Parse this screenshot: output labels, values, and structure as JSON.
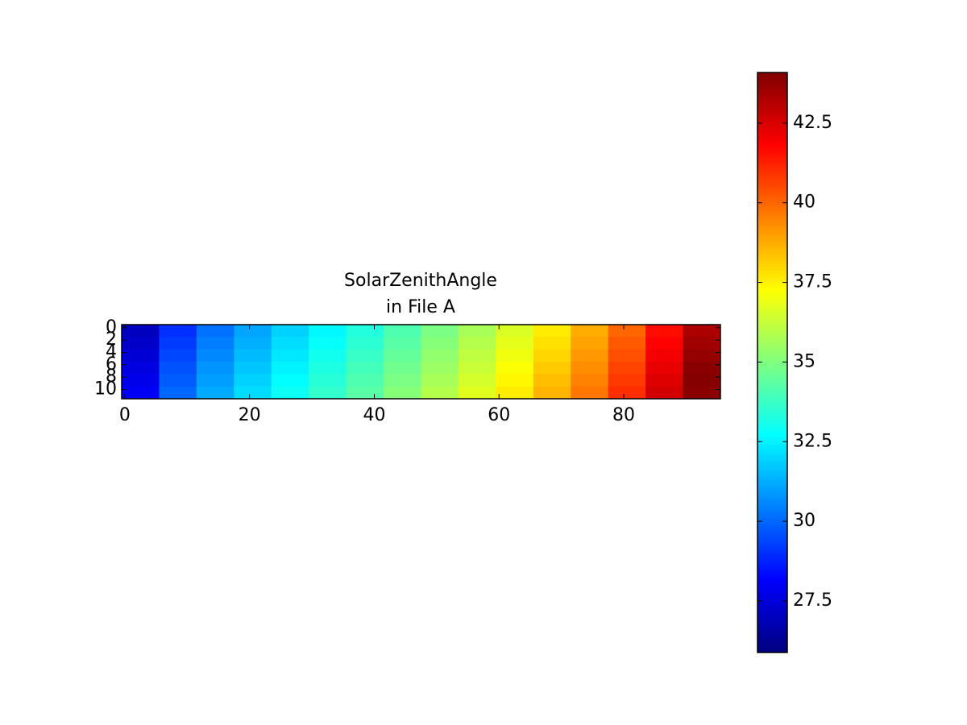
{
  "chart_data": {
    "type": "heatmap",
    "title": [
      "SolarZenithAngle",
      "in File A"
    ],
    "cmap": "jet",
    "x_edges": [
      -0.5,
      5.5,
      11.5,
      17.5,
      23.5,
      29.5,
      35.5,
      41.5,
      47.5,
      53.5,
      59.5,
      65.5,
      71.5,
      77.5,
      83.5,
      89.5,
      95.5
    ],
    "y_edges": [
      -0.5,
      1.5,
      3.5,
      5.5,
      7.5,
      9.5,
      11.5
    ],
    "values": [
      [
        27.0,
        29.0,
        30.2,
        31.1,
        31.9,
        32.6,
        33.3,
        34.1,
        34.9,
        35.7,
        36.6,
        37.6,
        38.7,
        40.0,
        41.6,
        43.3
      ],
      [
        27.2,
        29.2,
        30.4,
        31.3,
        32.1,
        32.8,
        33.5,
        34.3,
        35.1,
        35.9,
        36.8,
        37.8,
        38.9,
        40.2,
        41.8,
        43.5
      ],
      [
        27.4,
        29.4,
        30.6,
        31.5,
        32.3,
        33.0,
        33.7,
        34.5,
        35.3,
        36.1,
        37.0,
        38.0,
        39.1,
        40.4,
        42.0,
        43.7
      ],
      [
        27.6,
        29.6,
        30.8,
        31.7,
        32.5,
        33.2,
        33.9,
        34.7,
        35.5,
        36.3,
        37.2,
        38.2,
        39.3,
        40.6,
        42.2,
        43.9
      ],
      [
        27.8,
        29.8,
        31.0,
        31.9,
        32.7,
        33.4,
        34.1,
        34.9,
        35.7,
        36.5,
        37.4,
        38.4,
        39.5,
        40.8,
        42.4,
        44.0
      ],
      [
        28.0,
        30.0,
        31.2,
        32.1,
        32.9,
        33.6,
        34.3,
        35.1,
        35.9,
        36.7,
        37.6,
        38.6,
        39.7,
        41.0,
        42.6,
        43.9
      ]
    ],
    "xlim": [
      -0.5,
      95.5
    ],
    "ylim": [
      11.5,
      -0.5
    ],
    "xticks": [
      0,
      20,
      40,
      60,
      80
    ],
    "yticks": [
      0,
      2,
      4,
      6,
      8,
      10
    ],
    "colorbar": {
      "lim": [
        25.88,
        44.09
      ],
      "ticks": [
        27.5,
        30,
        32.5,
        35,
        37.5,
        40,
        42.5
      ]
    }
  }
}
